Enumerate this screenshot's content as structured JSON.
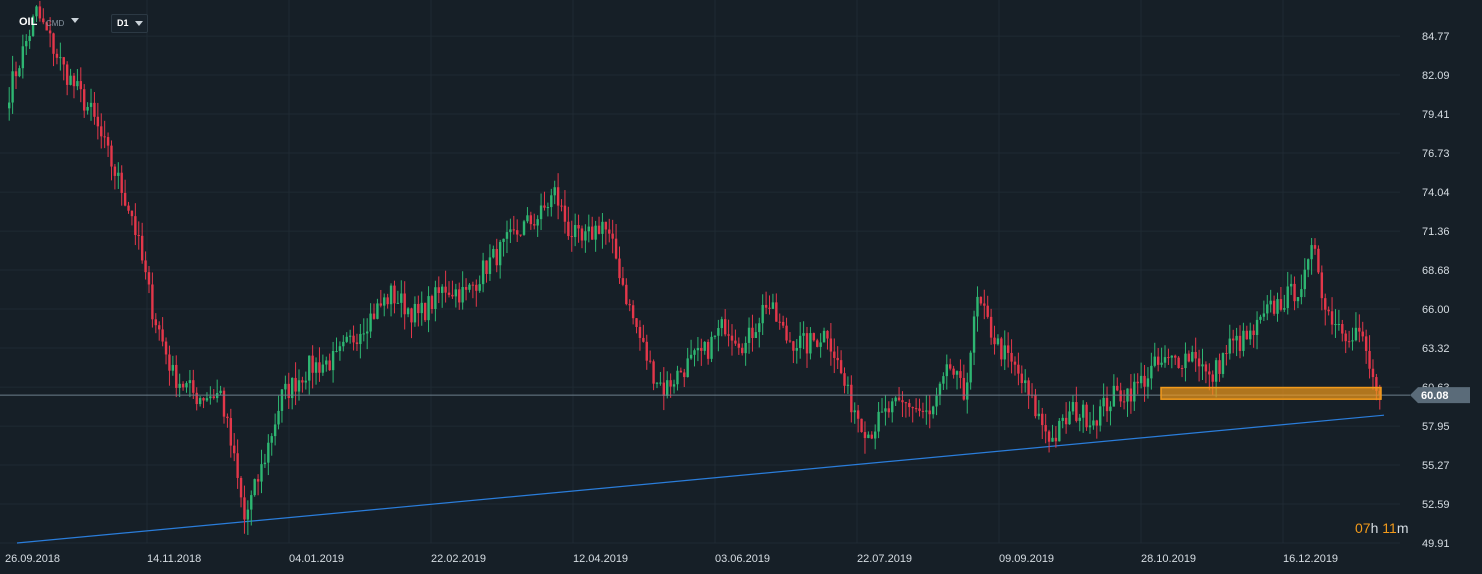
{
  "toolbar": {
    "symbol": "OIL",
    "instrument_type": "CMD",
    "timeframe": "D1"
  },
  "timer": {
    "hours": "07",
    "hours_unit": "h",
    "minutes": "11",
    "minutes_unit": "m"
  },
  "colors": {
    "background": "#161f27",
    "grid": "#1f2a33",
    "bull": "#2eb672",
    "bear": "#e3374a",
    "trendline": "#2a7ddb",
    "support_zone": "#f29a1b",
    "price_badge": "#5a6b79"
  },
  "chart_data": {
    "type": "candlestick",
    "title": "",
    "xlabel": "",
    "ylabel": "",
    "ylim": [
      49.91,
      86.7
    ],
    "grid": true,
    "y_ticks": [
      "84.77",
      "82.09",
      "79.41",
      "76.73",
      "74.04",
      "71.36",
      "68.68",
      "66.00",
      "63.32",
      "60.63",
      "57.95",
      "55.27",
      "52.59",
      "49.91"
    ],
    "x_ticks": [
      "26.09.2018",
      "14.11.2018",
      "04.01.2019",
      "22.02.2019",
      "12.04.2019",
      "03.06.2019",
      "22.07.2019",
      "09.09.2019",
      "28.10.2019",
      "16.12.2019"
    ],
    "current_price": "60.08",
    "anchors": [
      [
        0,
        81.0
      ],
      [
        8,
        86.4
      ],
      [
        16,
        82.5
      ],
      [
        24,
        79.5
      ],
      [
        30,
        76.0
      ],
      [
        36,
        72.5
      ],
      [
        42,
        66.0
      ],
      [
        48,
        61.5
      ],
      [
        55,
        60.0
      ],
      [
        62,
        60.2
      ],
      [
        66,
        55.5
      ],
      [
        69,
        51.5
      ],
      [
        74,
        55.0
      ],
      [
        80,
        60.0
      ],
      [
        88,
        62.0
      ],
      [
        96,
        62.5
      ],
      [
        104,
        65.0
      ],
      [
        112,
        67.0
      ],
      [
        120,
        65.5
      ],
      [
        128,
        67.5
      ],
      [
        134,
        67.0
      ],
      [
        140,
        69.0
      ],
      [
        150,
        71.5
      ],
      [
        156,
        72.5
      ],
      [
        160,
        74.0
      ],
      [
        164,
        71.5
      ],
      [
        168,
        70.5
      ],
      [
        174,
        72.0
      ],
      [
        178,
        69.5
      ],
      [
        182,
        66.0
      ],
      [
        188,
        62.0
      ],
      [
        192,
        60.5
      ],
      [
        198,
        62.0
      ],
      [
        204,
        63.0
      ],
      [
        210,
        65.0
      ],
      [
        216,
        63.5
      ],
      [
        222,
        66.5
      ],
      [
        228,
        64.0
      ],
      [
        234,
        63.5
      ],
      [
        240,
        64.5
      ],
      [
        246,
        60.0
      ],
      [
        252,
        57.5
      ],
      [
        258,
        59.0
      ],
      [
        264,
        59.5
      ],
      [
        270,
        58.5
      ],
      [
        276,
        62.0
      ],
      [
        280,
        60.0
      ],
      [
        284,
        66.5
      ],
      [
        290,
        63.5
      ],
      [
        296,
        61.5
      ],
      [
        302,
        58.5
      ],
      [
        306,
        57.0
      ],
      [
        312,
        59.0
      ],
      [
        318,
        58.5
      ],
      [
        324,
        60.0
      ],
      [
        330,
        60.5
      ],
      [
        336,
        62.0
      ],
      [
        342,
        62.5
      ],
      [
        348,
        63.0
      ],
      [
        352,
        61.0
      ],
      [
        358,
        63.5
      ],
      [
        364,
        64.0
      ],
      [
        370,
        66.0
      ],
      [
        376,
        67.0
      ],
      [
        380,
        68.0
      ],
      [
        383,
        70.5
      ],
      [
        386,
        66.0
      ],
      [
        392,
        64.5
      ],
      [
        396,
        64.5
      ],
      [
        400,
        61.0
      ],
      [
        402,
        60.1
      ]
    ],
    "trendline": {
      "from": [
        "26.09.2018",
        49.91
      ],
      "to": [
        "16.12.2019",
        58.7
      ]
    },
    "support_zone": {
      "low": 59.8,
      "high": 60.6,
      "from": "28.10.2019",
      "to": "end"
    }
  }
}
